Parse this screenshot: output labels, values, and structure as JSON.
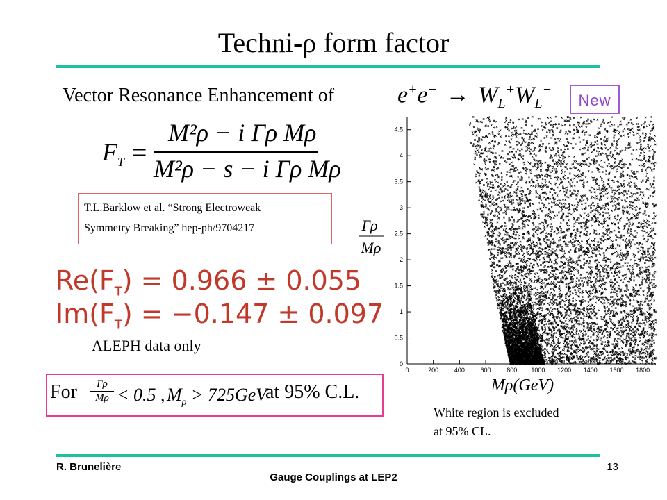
{
  "slide": {
    "title": "Techni-ρ form factor",
    "subtitle": "Vector Resonance Enhancement of",
    "badge": "New",
    "reaction": {
      "lhs": "e",
      "sup_plus": "+",
      "sup_minus": "−",
      "arrow": "→",
      "rhs": "W",
      "sub": "L"
    }
  },
  "formula": {
    "lhs": "F",
    "lhs_sub": "T",
    "equals": "=",
    "numerator": "M²ρ − i Γρ Mρ",
    "denominator": "M²ρ − s − i Γρ Mρ"
  },
  "reference": {
    "line1": "T.L.Barklow et al. “Strong Electroweak",
    "line2": "Symmetry Breaking” hep-ph/9704217"
  },
  "results": {
    "re_label": "Re(F",
    "re_value": ") = 0.966 ± 0.055",
    "im_label": "Im(F",
    "im_value": ") = −0.147 ± 0.097",
    "subscript": "T",
    "note": "ALEPH data only"
  },
  "limit": {
    "prefix": "For",
    "frac_num": "Γρ",
    "frac_den": "Mρ",
    "cond1": "< 0.5 ,",
    "cond2": "M",
    "cond2_sub": "ρ",
    "cond2_rest": " > 725GeV",
    "suffix": "at 95% C.L."
  },
  "chart_data": {
    "type": "scatter",
    "title": "",
    "xlabel": "Mρ(GeV)",
    "ylabel": "Γρ / Mρ",
    "xlim": [
      0,
      1900
    ],
    "ylim": [
      0,
      4.75
    ],
    "x_ticks": [
      0,
      200,
      400,
      600,
      800,
      1000,
      1200,
      1400,
      1600,
      1800
    ],
    "y_ticks": [
      0,
      0.5,
      1,
      1.5,
      2,
      2.5,
      3,
      3.5,
      4,
      4.5
    ],
    "boundary": [
      {
        "x": 790,
        "y": 0
      },
      {
        "x": 760,
        "y": 0.3
      },
      {
        "x": 720,
        "y": 0.8
      },
      {
        "x": 660,
        "y": 1.5
      },
      {
        "x": 600,
        "y": 2.3
      },
      {
        "x": 555,
        "y": 3.0
      },
      {
        "x": 520,
        "y": 3.6
      },
      {
        "x": 490,
        "y": 4.2
      },
      {
        "x": 470,
        "y": 4.75
      }
    ],
    "legend": "none",
    "grid": false
  },
  "plot_note": {
    "line1": "White region is excluded",
    "line2": "at 95% CL."
  },
  "footer": {
    "author": "R. Brunelière",
    "center": "Gauge Couplings at LEP2",
    "page": "13"
  }
}
